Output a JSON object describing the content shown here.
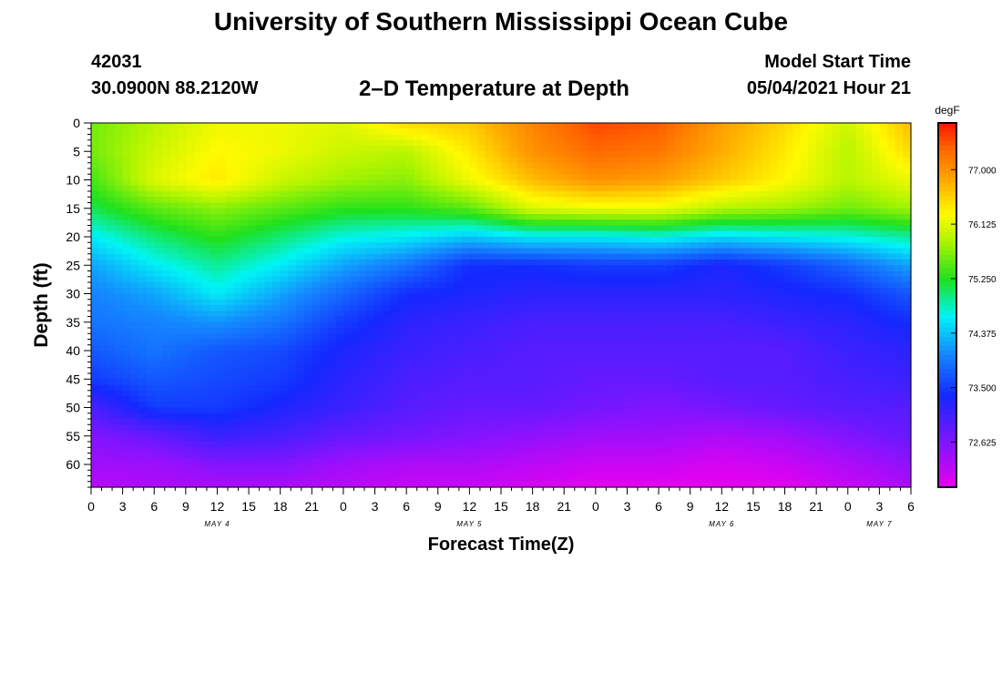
{
  "header": {
    "title": "University of Southern Mississippi Ocean Cube",
    "station_id": "42031",
    "station_coords": "30.0900N  88.2120W",
    "plot_title": "2–D Temperature at Depth",
    "start_label": "Model Start Time",
    "start_value": "05/04/2021 Hour 21"
  },
  "footer": {
    "title": "University of Southern Mississippi Ocean Cube"
  },
  "chart_data": {
    "type": "heatmap",
    "title": "2–D Temperature at Depth",
    "xlabel": "Forecast Time(Z)",
    "ylabel": "Depth (ft)",
    "ylim": [
      0,
      64
    ],
    "y_ticks": [
      0,
      5,
      10,
      15,
      20,
      25,
      30,
      35,
      40,
      45,
      50,
      55,
      60
    ],
    "x_range_hours": [
      0,
      78
    ],
    "x_tick_labels": [
      "0",
      "3",
      "6",
      "9",
      "12",
      "15",
      "18",
      "21",
      "0",
      "3",
      "6",
      "9",
      "12",
      "15",
      "18",
      "21",
      "0",
      "3",
      "6",
      "9",
      "12",
      "15",
      "18",
      "21",
      "0",
      "3",
      "6"
    ],
    "date_labels": [
      {
        "text": "MAY 4",
        "hour": 12
      },
      {
        "text": "MAY 5",
        "hour": 36
      },
      {
        "text": "MAY 6",
        "hour": 60
      },
      {
        "text": "MAY 7",
        "hour": 75
      }
    ],
    "colorbar": {
      "unit": "degF",
      "min": 71.9,
      "max": 77.75,
      "ticks": [
        "77.000",
        "76.125",
        "75.250",
        "74.375",
        "73.500",
        "72.625"
      ]
    },
    "depth_levels": [
      0,
      5,
      10,
      15,
      20,
      25,
      30,
      35,
      40,
      45,
      50,
      55,
      60,
      64
    ],
    "time_hours": [
      0,
      6,
      12,
      18,
      24,
      30,
      36,
      42,
      48,
      54,
      60,
      66,
      72,
      78
    ],
    "temperature_degF": [
      [
        75.6,
        75.9,
        76.2,
        76.2,
        76.1,
        76.5,
        76.6,
        77.1,
        77.5,
        77.4,
        76.9,
        76.5,
        76.0,
        76.7
      ],
      [
        75.6,
        76.0,
        76.3,
        76.2,
        76.0,
        75.9,
        76.4,
        77.0,
        77.3,
        77.2,
        76.8,
        76.4,
        75.9,
        76.5
      ],
      [
        75.4,
        76.1,
        76.4,
        76.0,
        75.8,
        75.7,
        76.2,
        76.7,
        77.0,
        76.9,
        76.6,
        76.3,
        75.9,
        76.2
      ],
      [
        75.1,
        75.5,
        75.7,
        75.5,
        75.3,
        75.3,
        75.5,
        76.1,
        76.2,
        76.2,
        75.9,
        75.8,
        75.6,
        75.8
      ],
      [
        74.6,
        75.0,
        75.3,
        75.0,
        74.7,
        74.6,
        74.4,
        74.6,
        74.6,
        74.7,
        74.5,
        74.6,
        74.7,
        74.9
      ],
      [
        74.2,
        74.6,
        74.9,
        74.6,
        74.2,
        73.9,
        73.4,
        73.4,
        73.5,
        73.5,
        73.3,
        73.5,
        73.8,
        74.2
      ],
      [
        74.0,
        74.2,
        74.6,
        74.2,
        73.8,
        73.4,
        73.3,
        73.2,
        73.2,
        73.2,
        73.2,
        73.3,
        73.4,
        73.7
      ],
      [
        73.9,
        74.0,
        74.1,
        73.9,
        73.5,
        73.2,
        73.1,
        73.0,
        73.0,
        73.0,
        73.0,
        73.1,
        73.2,
        73.4
      ],
      [
        73.7,
        73.9,
        73.7,
        73.6,
        73.3,
        73.1,
        73.0,
        72.9,
        72.9,
        72.9,
        72.9,
        72.9,
        73.1,
        73.2
      ],
      [
        73.5,
        73.7,
        73.6,
        73.5,
        73.2,
        73.0,
        72.9,
        72.9,
        72.8,
        72.8,
        72.9,
        72.9,
        73.0,
        73.1
      ],
      [
        73.0,
        73.5,
        73.5,
        73.3,
        73.1,
        72.9,
        72.8,
        72.8,
        72.7,
        72.6,
        72.7,
        72.8,
        72.9,
        72.9
      ],
      [
        72.6,
        72.8,
        73.1,
        73.0,
        72.8,
        72.7,
        72.6,
        72.5,
        72.4,
        72.4,
        72.3,
        72.4,
        72.6,
        72.8
      ],
      [
        72.4,
        72.4,
        72.6,
        72.6,
        72.4,
        72.3,
        72.3,
        72.2,
        72.1,
        72.1,
        72.0,
        72.1,
        72.3,
        72.5
      ],
      [
        72.2,
        72.3,
        72.3,
        72.3,
        72.2,
        72.1,
        72.1,
        72.0,
        71.9,
        71.9,
        71.9,
        71.9,
        72.1,
        72.3
      ]
    ]
  }
}
